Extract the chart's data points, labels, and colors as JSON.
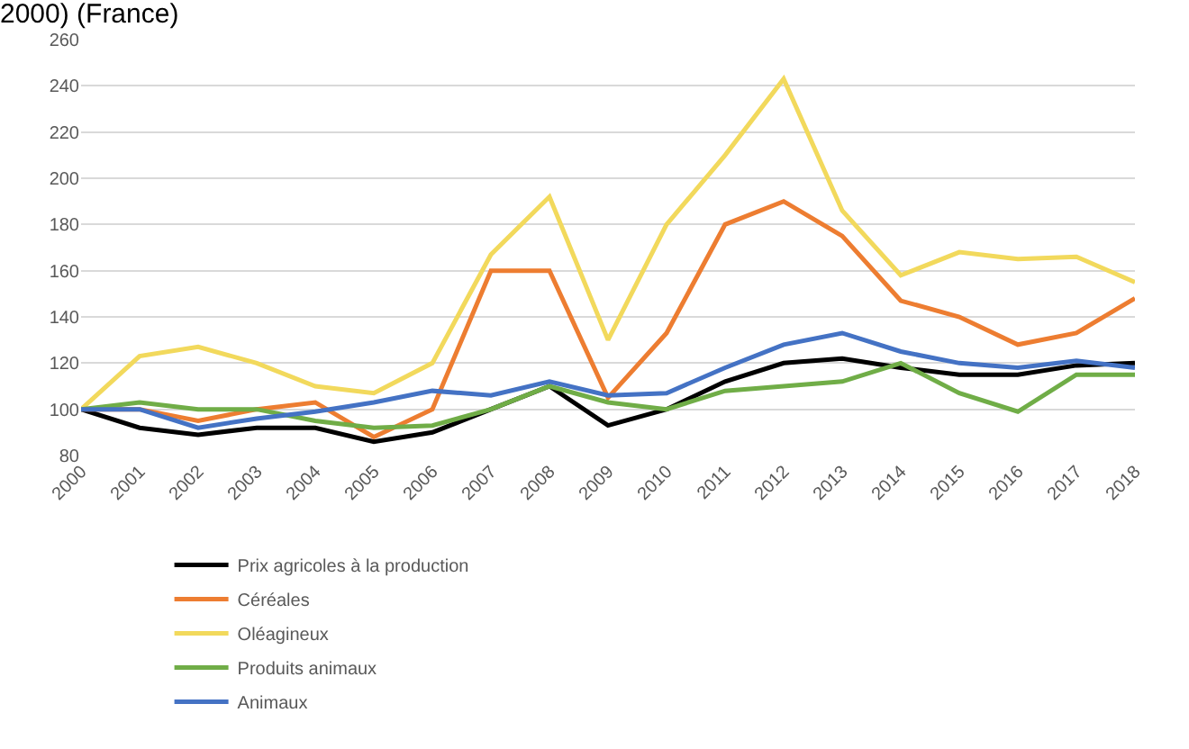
{
  "chart_data": {
    "type": "line",
    "title": "2000) (France)",
    "categories": [
      "2000",
      "2001",
      "2002",
      "2003",
      "2004",
      "2005",
      "2006",
      "2007",
      "2008",
      "2009",
      "2010",
      "2011",
      "2012",
      "2013",
      "2014",
      "2015",
      "2016",
      "2017",
      "2018"
    ],
    "series": [
      {
        "name": "Prix agricoles à la production",
        "color": "#000000",
        "values": [
          100,
          92,
          89,
          92,
          92,
          86,
          90,
          100,
          110,
          93,
          100,
          112,
          120,
          122,
          118,
          115,
          115,
          119,
          120
        ]
      },
      {
        "name": "Céréales",
        "color": "#ed7d31",
        "values": [
          100,
          100,
          95,
          100,
          103,
          88,
          100,
          160,
          160,
          105,
          133,
          180,
          190,
          175,
          147,
          140,
          128,
          133,
          148
        ]
      },
      {
        "name": "Oléagineux",
        "color": "#f2d95c",
        "values": [
          100,
          123,
          127,
          120,
          110,
          107,
          120,
          167,
          192,
          130,
          180,
          210,
          243,
          186,
          158,
          168,
          165,
          166,
          155
        ]
      },
      {
        "name": "Produits animaux",
        "color": "#70ad47",
        "values": [
          100,
          103,
          100,
          100,
          95,
          92,
          93,
          100,
          110,
          103,
          100,
          108,
          110,
          112,
          120,
          107,
          99,
          115,
          115
        ]
      },
      {
        "name": "Animaux",
        "color": "#4472c4",
        "values": [
          100,
          100,
          92,
          96,
          99,
          103,
          108,
          106,
          112,
          106,
          107,
          118,
          128,
          133,
          125,
          120,
          118,
          121,
          118
        ]
      }
    ],
    "ylim": [
      80,
      260
    ],
    "yticks": [
      80,
      100,
      120,
      140,
      160,
      180,
      200,
      220,
      240,
      260
    ],
    "grid": "y",
    "legend": "bottom",
    "marker": "none",
    "line_style": "solid"
  }
}
